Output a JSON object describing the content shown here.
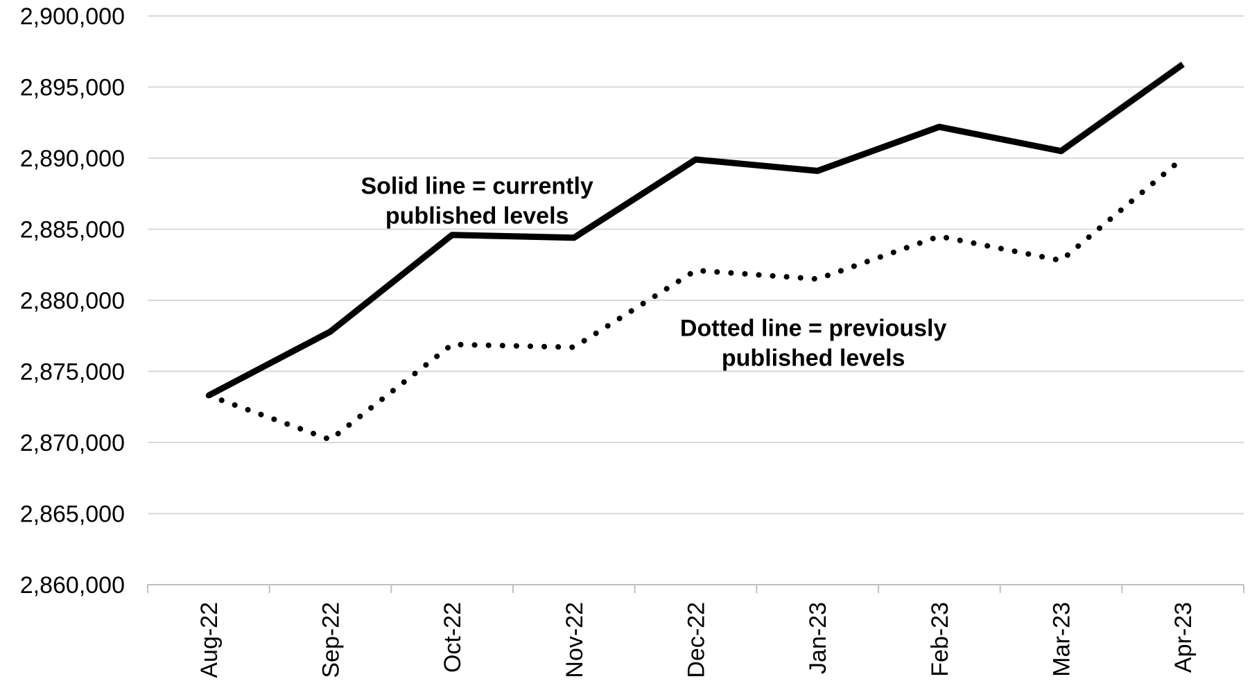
{
  "chart_data": {
    "type": "line",
    "title": "",
    "xlabel": "",
    "ylabel": "",
    "categories": [
      "Aug-22",
      "Sep-22",
      "Oct-22",
      "Nov-22",
      "Dec-22",
      "Jan-23",
      "Feb-23",
      "Mar-23",
      "Apr-23"
    ],
    "ylim": [
      2860000,
      2900000
    ],
    "y_ticks": [
      2860000,
      2865000,
      2870000,
      2875000,
      2880000,
      2885000,
      2890000,
      2895000,
      2900000
    ],
    "y_tick_labels": [
      "2,860,000",
      "2,865,000",
      "2,870,000",
      "2,875,000",
      "2,880,000",
      "2,885,000",
      "2,890,000",
      "2,895,000",
      "2,900,000"
    ],
    "grid": true,
    "series": [
      {
        "style": "solid",
        "color": "#000000",
        "values": [
          2873300,
          2877800,
          2884600,
          2884400,
          2889900,
          2889100,
          2892200,
          2890500,
          2896600
        ]
      },
      {
        "style": "dotted",
        "color": "#000000",
        "values": [
          2873300,
          2870200,
          2876900,
          2876700,
          2882100,
          2881500,
          2884500,
          2882800,
          2890000
        ]
      }
    ],
    "annotations": [
      {
        "lines": [
          "Solid line = currently",
          "published levels"
        ],
        "anchor": {
          "category": "Oct-22",
          "value": 2887500
        }
      },
      {
        "lines": [
          "Dotted line = previously",
          "published levels"
        ],
        "anchor": {
          "category": "Jan-23",
          "value": 2877500
        }
      }
    ]
  }
}
